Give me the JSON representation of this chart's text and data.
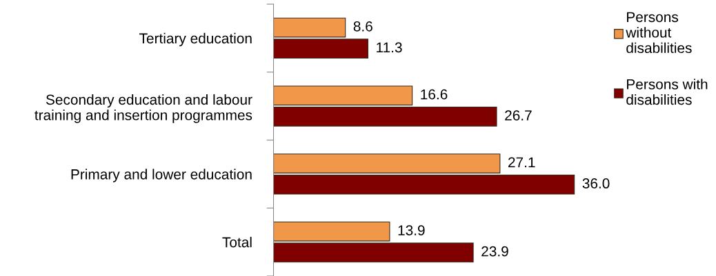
{
  "chart_data": {
    "type": "bar",
    "orientation": "horizontal",
    "categories": [
      "Tertiary education",
      "Secondary education and labour\ntraining and insertion programmes",
      "Primary and lower education",
      "Total"
    ],
    "series": [
      {
        "name": "Persons\nwithout\ndisabilities",
        "color": "#f0974a",
        "values": [
          8.6,
          16.6,
          27.1,
          13.9
        ],
        "value_labels": [
          "8.6",
          "16.6",
          "27.1",
          "13.9"
        ]
      },
      {
        "name": "Persons with\ndisabilities",
        "color": "#800000",
        "values": [
          11.3,
          26.7,
          36.0,
          23.9
        ],
        "value_labels": [
          "11.3",
          "26.7",
          "36.0",
          "23.9"
        ]
      }
    ],
    "legend": "top right",
    "grid": false
  }
}
